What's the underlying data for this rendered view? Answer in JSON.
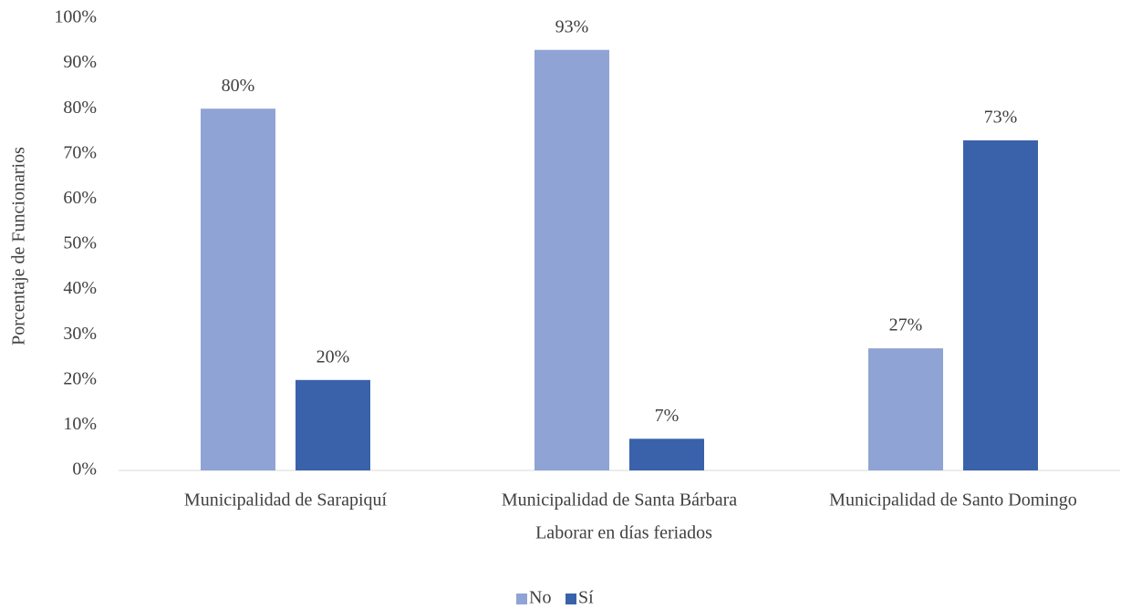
{
  "chart_data": {
    "type": "bar",
    "x_label": "Laborar en días feriados",
    "y_label": "Porcentaje de Funcionarios",
    "categories": [
      "Municipalidad de Sarapiquí",
      "Municipalidad de Santa Bárbara",
      "Municipalidad de Santo Domingo"
    ],
    "series": [
      {
        "name": "No",
        "color": "#8fa3d4",
        "values": [
          80,
          93,
          27
        ],
        "value_labels": [
          "80%",
          "93%",
          "27%"
        ]
      },
      {
        "name": "Sí",
        "color": "#3a62ab",
        "values": [
          20,
          7,
          73
        ],
        "value_labels": [
          "20%",
          "7%",
          "73%"
        ]
      }
    ],
    "ylim": [
      0,
      100
    ],
    "yticks": [
      {
        "value": 0,
        "label": "0%"
      },
      {
        "value": 10,
        "label": "10%"
      },
      {
        "value": 20,
        "label": "20%"
      },
      {
        "value": 30,
        "label": "30%"
      },
      {
        "value": 40,
        "label": "40%"
      },
      {
        "value": 50,
        "label": "50%"
      },
      {
        "value": 60,
        "label": "60%"
      },
      {
        "value": 70,
        "label": "70%"
      },
      {
        "value": 80,
        "label": "80%"
      },
      {
        "value": 90,
        "label": "90%"
      },
      {
        "value": 100,
        "label": "100%"
      }
    ],
    "grid": false,
    "legend": "bottom"
  }
}
